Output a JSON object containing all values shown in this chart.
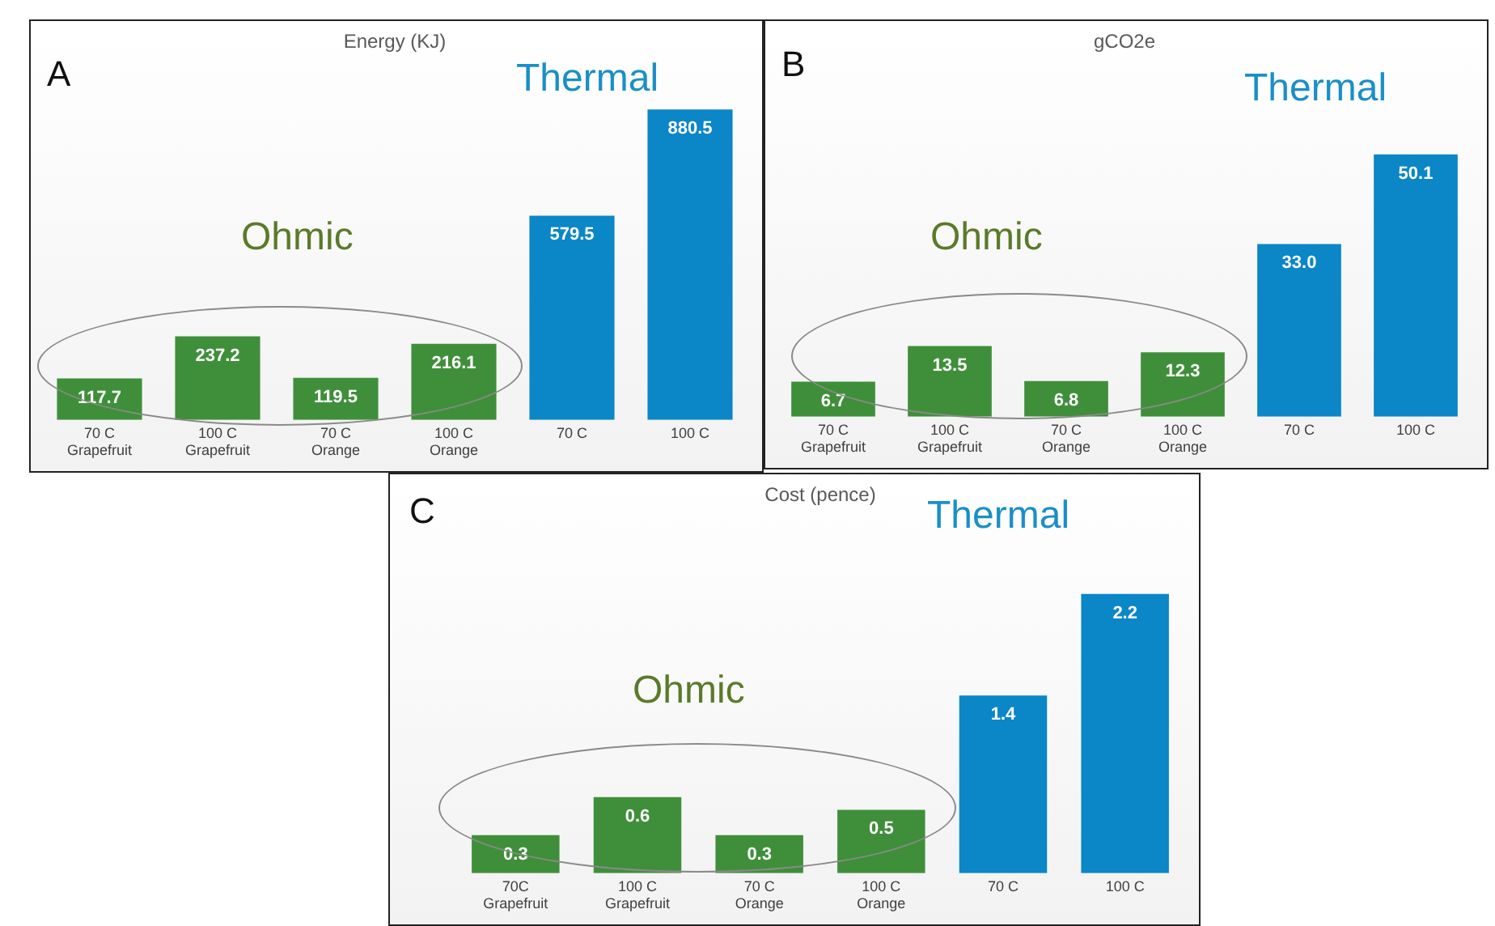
{
  "chart_data": [
    {
      "type": "bar",
      "title": "Energy (KJ)",
      "categories": [
        "70 C\nGrapefruit",
        "100 C\nGrapefruit",
        "70 C\nOrange",
        "100 C\nOrange",
        "70 C",
        "100 C"
      ],
      "values": [
        117.7,
        237.2,
        119.5,
        216.1,
        579.5,
        880.5
      ],
      "value_labels": [
        "117.7",
        "237.2",
        "119.5",
        "216.1",
        "579.5",
        "880.5"
      ],
      "colors": [
        "#3f8f3a",
        "#3f8f3a",
        "#3f8f3a",
        "#3f8f3a",
        "#0b86c6",
        "#0b86c6"
      ],
      "grid": false,
      "legend": false,
      "annotations": [
        "A",
        "Ohmic",
        "Thermal"
      ]
    },
    {
      "type": "bar",
      "title": "gCO2e",
      "categories": [
        "70 C\nGrapefruit",
        "100 C\nGrapefruit",
        "70 C\nOrange",
        "100 C\nOrange",
        "70 C",
        "100 C"
      ],
      "values": [
        6.7,
        13.5,
        6.8,
        12.3,
        33.0,
        50.1
      ],
      "value_labels": [
        "6.7",
        "13.5",
        "6.8",
        "12.3",
        "33.0",
        "50.1"
      ],
      "colors": [
        "#3f8f3a",
        "#3f8f3a",
        "#3f8f3a",
        "#3f8f3a",
        "#0b86c6",
        "#0b86c6"
      ],
      "grid": false,
      "legend": false,
      "annotations": [
        "B",
        "Ohmic",
        "Thermal"
      ]
    },
    {
      "type": "bar",
      "title": "Cost (pence)",
      "categories": [
        "70C\nGrapefruit",
        "100 C\nGrapefruit",
        "70 C\nOrange",
        "100 C\nOrange",
        "70 C",
        "100 C"
      ],
      "values": [
        0.3,
        0.6,
        0.3,
        0.5,
        1.4,
        2.2
      ],
      "value_labels": [
        "0.3",
        "0.6",
        "0.3",
        "0.5",
        "1.4",
        "2.2"
      ],
      "colors": [
        "#3f8f3a",
        "#3f8f3a",
        "#3f8f3a",
        "#3f8f3a",
        "#0b86c6",
        "#0b86c6"
      ],
      "grid": false,
      "legend": false,
      "annotations": [
        "C",
        "Ohmic",
        "Thermal"
      ]
    }
  ]
}
